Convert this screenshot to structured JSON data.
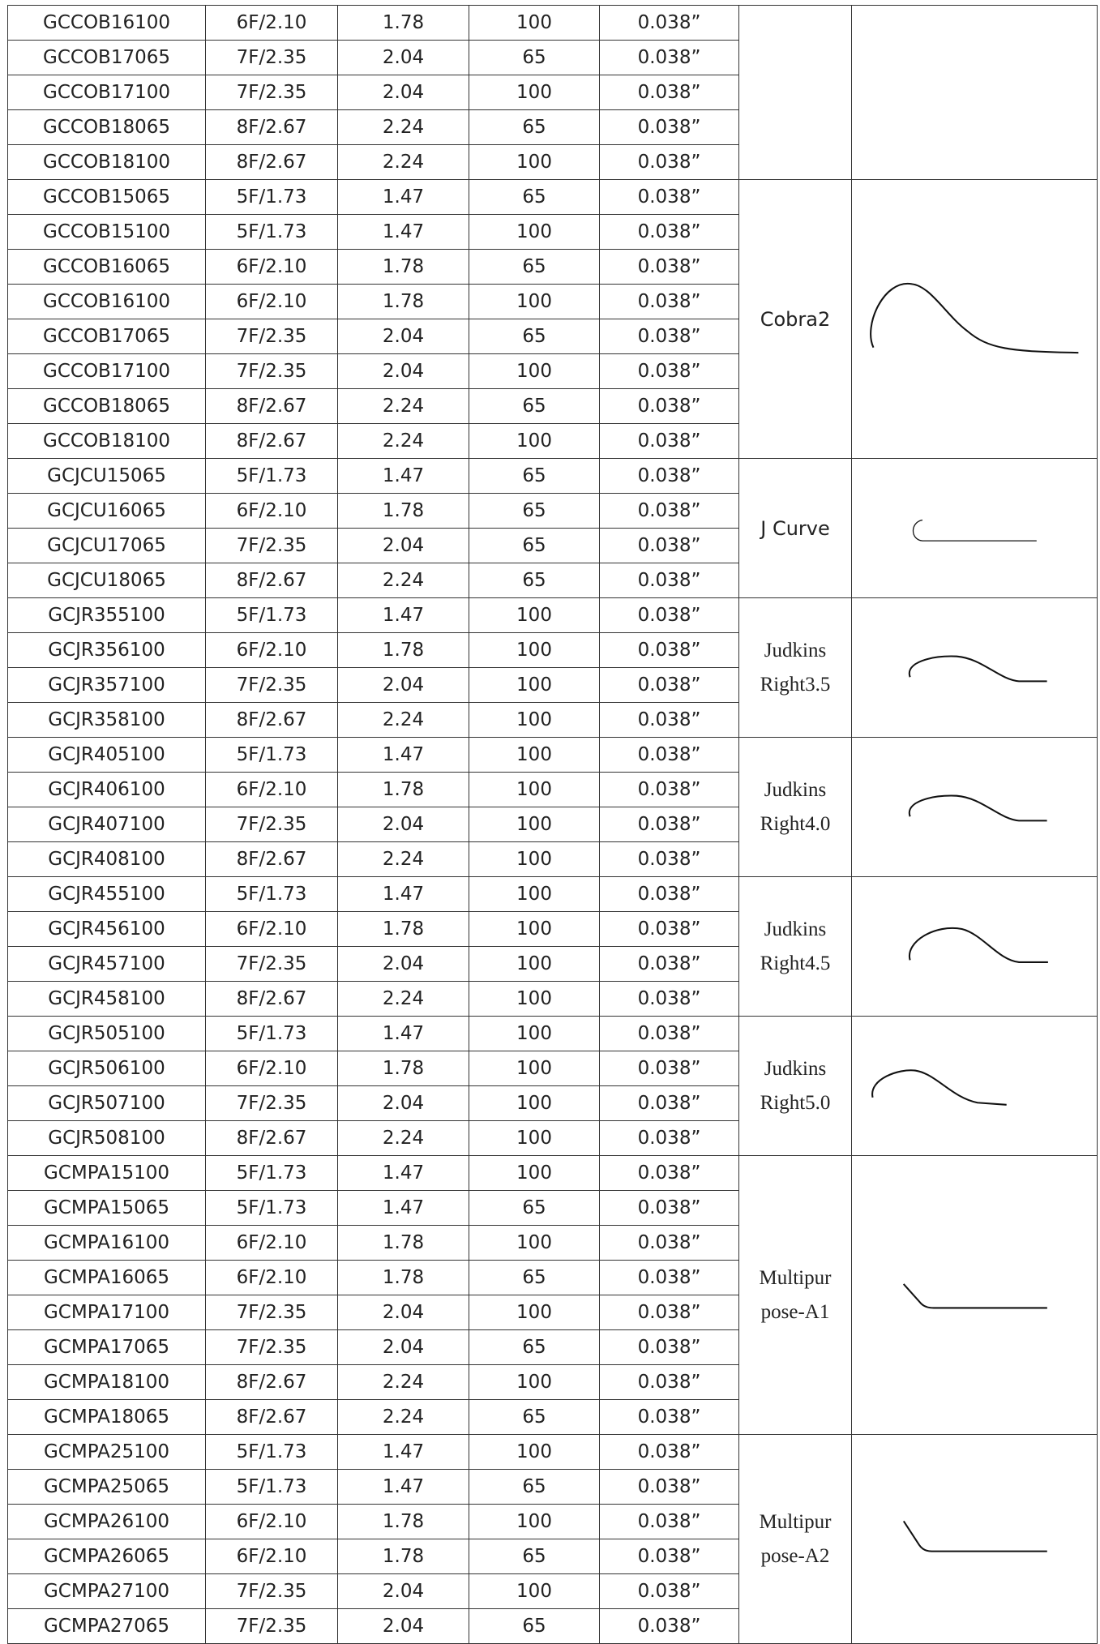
{
  "groups": [
    {
      "rows": [
        [
          "GCCOB16100",
          "6F/2.10",
          "1.78",
          "100",
          "0.038”"
        ],
        [
          "GCCOB17065",
          "7F/2.35",
          "2.04",
          "65",
          "0.038”"
        ],
        [
          "GCCOB17100",
          "7F/2.35",
          "2.04",
          "100",
          "0.038”"
        ],
        [
          "GCCOB18065",
          "8F/2.67",
          "2.24",
          "65",
          "0.038”"
        ],
        [
          "GCCOB18100",
          "8F/2.67",
          "2.24",
          "100",
          "0.038”"
        ]
      ]
    },
    {
      "name": [
        "Cobra2"
      ],
      "rows": [
        [
          "GCCOB15065",
          "5F/1.73",
          "1.47",
          "65",
          "0.038”"
        ],
        [
          "GCCOB15100",
          "5F/1.73",
          "1.47",
          "100",
          "0.038”"
        ],
        [
          "GCCOB16065",
          "6F/2.10",
          "1.78",
          "65",
          "0.038”"
        ],
        [
          "GCCOB16100",
          "6F/2.10",
          "1.78",
          "100",
          "0.038”"
        ],
        [
          "GCCOB17065",
          "7F/2.35",
          "2.04",
          "65",
          "0.038”"
        ],
        [
          "GCCOB17100",
          "7F/2.35",
          "2.04",
          "100",
          "0.038”"
        ],
        [
          "GCCOB18065",
          "8F/2.67",
          "2.24",
          "65",
          "0.038”"
        ],
        [
          "GCCOB18100",
          "8F/2.67",
          "2.24",
          "100",
          "0.038”"
        ]
      ]
    },
    {
      "name": [
        "J Curve"
      ],
      "rows": [
        [
          "GCJCU15065",
          "5F/1.73",
          "1.47",
          "65",
          "0.038”"
        ],
        [
          "GCJCU16065",
          "6F/2.10",
          "1.78",
          "65",
          "0.038”"
        ],
        [
          "GCJCU17065",
          "7F/2.35",
          "2.04",
          "65",
          "0.038”"
        ],
        [
          "GCJCU18065",
          "8F/2.67",
          "2.24",
          "65",
          "0.038”"
        ]
      ]
    },
    {
      "name": [
        "Judkins",
        "Right3.5"
      ],
      "rows": [
        [
          "GCJR355100",
          "5F/1.73",
          "1.47",
          "100",
          "0.038”"
        ],
        [
          "GCJR356100",
          "6F/2.10",
          "1.78",
          "100",
          "0.038”"
        ],
        [
          "GCJR357100",
          "7F/2.35",
          "2.04",
          "100",
          "0.038”"
        ],
        [
          "GCJR358100",
          "8F/2.67",
          "2.24",
          "100",
          "0.038”"
        ]
      ]
    },
    {
      "name": [
        "Judkins",
        "Right4.0"
      ],
      "rows": [
        [
          "GCJR405100",
          "5F/1.73",
          "1.47",
          "100",
          "0.038”"
        ],
        [
          "GCJR406100",
          "6F/2.10",
          "1.78",
          "100",
          "0.038”"
        ],
        [
          "GCJR407100",
          "7F/2.35",
          "2.04",
          "100",
          "0.038”"
        ],
        [
          "GCJR408100",
          "8F/2.67",
          "2.24",
          "100",
          "0.038”"
        ]
      ]
    },
    {
      "name": [
        "Judkins",
        "Right4.5"
      ],
      "rows": [
        [
          "GCJR455100",
          "5F/1.73",
          "1.47",
          "100",
          "0.038”"
        ],
        [
          "GCJR456100",
          "6F/2.10",
          "1.78",
          "100",
          "0.038”"
        ],
        [
          "GCJR457100",
          "7F/2.35",
          "2.04",
          "100",
          "0.038”"
        ],
        [
          "GCJR458100",
          "8F/2.67",
          "2.24",
          "100",
          "0.038”"
        ]
      ]
    },
    {
      "name": [
        "Judkins",
        "Right5.0"
      ],
      "rows": [
        [
          "GCJR505100",
          "5F/1.73",
          "1.47",
          "100",
          "0.038”"
        ],
        [
          "GCJR506100",
          "6F/2.10",
          "1.78",
          "100",
          "0.038”"
        ],
        [
          "GCJR507100",
          "7F/2.35",
          "2.04",
          "100",
          "0.038”"
        ],
        [
          "GCJR508100",
          "8F/2.67",
          "2.24",
          "100",
          "0.038”"
        ]
      ]
    },
    {
      "name": [
        "Multipur",
        "pose-A1"
      ],
      "rows": [
        [
          "GCMPA15100",
          "5F/1.73",
          "1.47",
          "100",
          "0.038”"
        ],
        [
          "GCMPA15065",
          "5F/1.73",
          "1.47",
          "65",
          "0.038”"
        ],
        [
          "GCMPA16100",
          "6F/2.10",
          "1.78",
          "100",
          "0.038”"
        ],
        [
          "GCMPA16065",
          "6F/2.10",
          "1.78",
          "65",
          "0.038”"
        ],
        [
          "GCMPA17100",
          "7F/2.35",
          "2.04",
          "100",
          "0.038”"
        ],
        [
          "GCMPA17065",
          "7F/2.35",
          "2.04",
          "65",
          "0.038”"
        ],
        [
          "GCMPA18100",
          "8F/2.67",
          "2.24",
          "100",
          "0.038”"
        ],
        [
          "GCMPA18065",
          "8F/2.67",
          "2.24",
          "65",
          "0.038”"
        ]
      ]
    },
    {
      "name": [
        "Multipur",
        "pose-A2"
      ],
      "rows": [
        [
          "GCMPA25100",
          "5F/1.73",
          "1.47",
          "100",
          "0.038”"
        ],
        [
          "GCMPA25065",
          "5F/1.73",
          "1.47",
          "65",
          "0.038”"
        ],
        [
          "GCMPA26100",
          "6F/2.10",
          "1.78",
          "100",
          "0.038”"
        ],
        [
          "GCMPA26065",
          "6F/2.10",
          "1.78",
          "65",
          "0.038”"
        ],
        [
          "GCMPA27100",
          "7F/2.35",
          "2.04",
          "100",
          "0.038”"
        ],
        [
          "GCMPA27065",
          "7F/2.35",
          "2.04",
          "65",
          "0.038”"
        ]
      ]
    }
  ]
}
